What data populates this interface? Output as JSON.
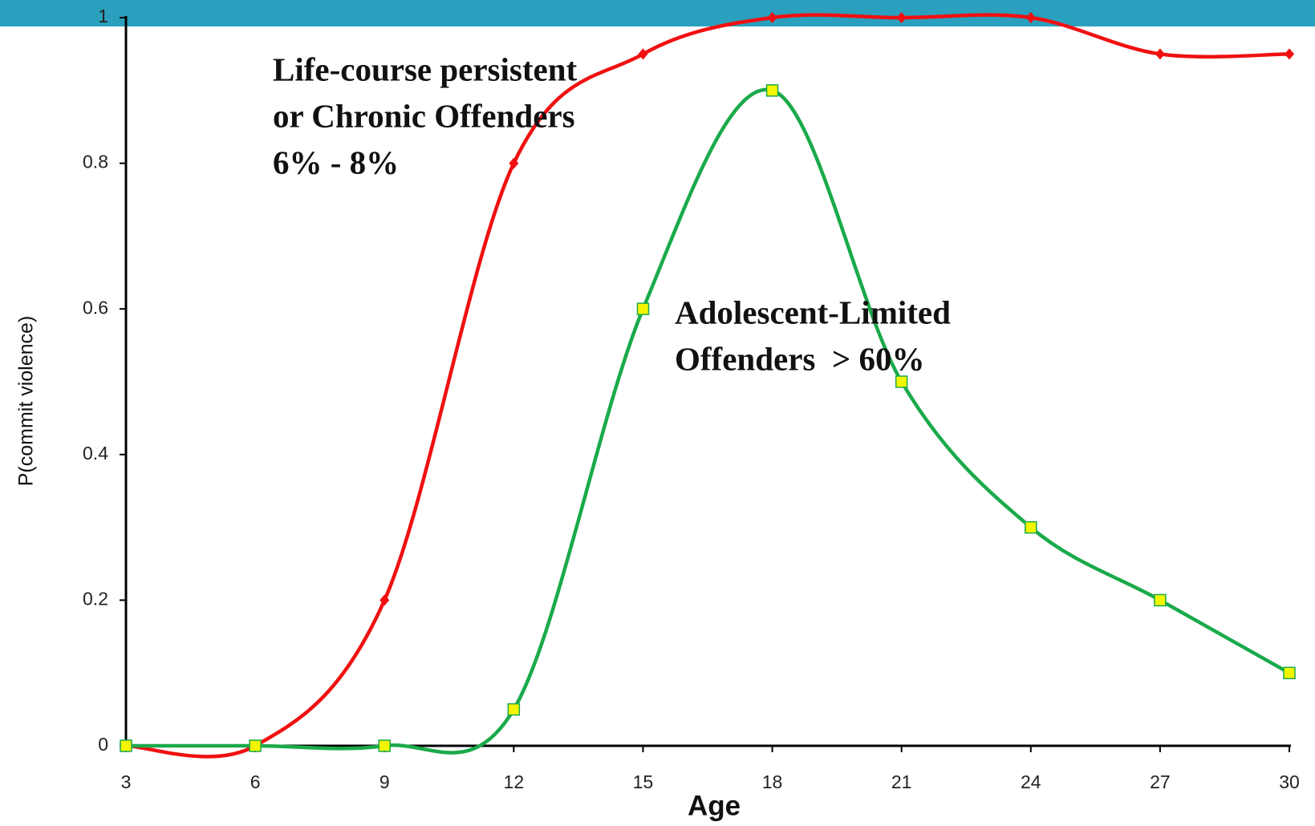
{
  "chart_data": {
    "type": "line",
    "x": [
      3,
      6,
      9,
      12,
      15,
      18,
      21,
      24,
      27,
      30
    ],
    "series": [
      {
        "color": "#f01010",
        "marker": "diamond",
        "values": [
          0,
          0,
          0.2,
          0.8,
          0.95,
          1,
          1,
          1,
          0.95,
          0.95
        ]
      },
      {
        "color": "#1aaa4a",
        "marker": "square",
        "marker_fill": "#f5f500",
        "values": [
          0,
          0,
          0,
          0.05,
          0.6,
          0.9,
          0.5,
          0.3,
          0.2,
          0.1
        ]
      }
    ],
    "smooth": true,
    "xlim": [
      3,
      30
    ],
    "xticks": [
      3,
      6,
      9,
      12,
      15,
      18,
      21,
      24,
      27,
      30
    ],
    "ylim": [
      0,
      1
    ],
    "yticks": [
      0,
      0.2,
      0.4,
      0.6,
      0.8,
      1
    ],
    "xlabel": "Age",
    "ylabel": "P(commit violence)",
    "annotations": [
      {
        "lines": [
          "Life-course persistent",
          "or Chronic Offenders",
          "6% - 8%"
        ]
      },
      {
        "lines": [
          "Adolescent-Limited",
          "Offenders  > 60%"
        ]
      }
    ]
  }
}
